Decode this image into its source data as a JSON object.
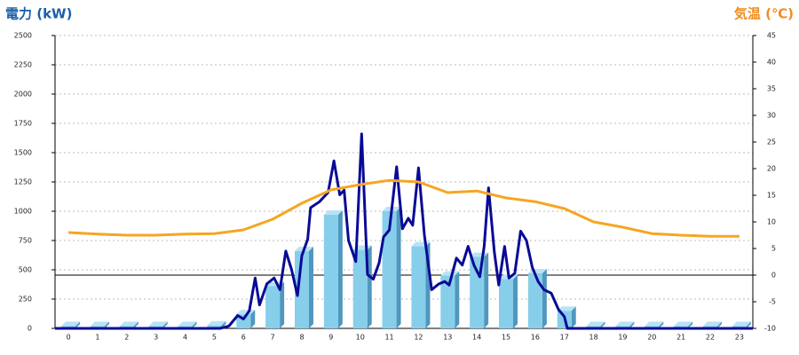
{
  "chart_data": {
    "type": "combo",
    "title_left": "電力 (kW)",
    "title_right": "気温 (℃)",
    "categories": [
      "0",
      "1",
      "2",
      "3",
      "4",
      "5",
      "6",
      "7",
      "8",
      "9",
      "10",
      "11",
      "12",
      "13",
      "14",
      "15",
      "16",
      "17",
      "18",
      "19",
      "20",
      "21",
      "22",
      "23"
    ],
    "xlim": [
      -0.46,
      23.46
    ],
    "ylim": [
      0,
      2500
    ],
    "yticks": [
      0,
      250,
      500,
      750,
      1000,
      1250,
      1500,
      1750,
      2000,
      2250,
      2500
    ],
    "y2lim": [
      -10,
      45
    ],
    "y2ticks": [
      -10,
      -5,
      0,
      5,
      10,
      15,
      20,
      25,
      30,
      35,
      40,
      45
    ],
    "grid": true,
    "y2_zero_line": true,
    "series": [
      {
        "type": "bar",
        "color": "#87ceeb",
        "values": [
          20,
          20,
          20,
          20,
          20,
          25,
          120,
          360,
          660,
          970,
          670,
          1000,
          700,
          450,
          610,
          420,
          470,
          150,
          20,
          20,
          20,
          20,
          20,
          20
        ]
      },
      {
        "type": "line",
        "color": "#0a0a96",
        "x": [
          -0.46,
          5.2,
          5.5,
          5.8,
          6.0,
          6.2,
          6.4,
          6.55,
          6.8,
          7.05,
          7.25,
          7.45,
          7.65,
          7.85,
          8.0,
          8.2,
          8.3,
          8.6,
          8.9,
          9.1,
          9.3,
          9.45,
          9.6,
          9.85,
          10.05,
          10.25,
          10.45,
          10.65,
          10.8,
          11.0,
          11.25,
          11.45,
          11.65,
          11.8,
          12.0,
          12.2,
          12.45,
          12.7,
          12.9,
          13.05,
          13.3,
          13.5,
          13.7,
          13.9,
          14.1,
          14.25,
          14.4,
          14.6,
          14.75,
          14.95,
          15.1,
          15.3,
          15.5,
          15.7,
          15.9,
          16.1,
          16.3,
          16.55,
          16.8,
          17.0,
          17.1,
          23.46
        ],
        "values": [
          0,
          0,
          20,
          110,
          80,
          150,
          430,
          200,
          380,
          430,
          330,
          660,
          500,
          280,
          620,
          760,
          1030,
          1080,
          1160,
          1430,
          1140,
          1180,
          750,
          570,
          1660,
          460,
          420,
          560,
          780,
          840,
          1380,
          850,
          940,
          880,
          1370,
          800,
          330,
          380,
          400,
          370,
          600,
          540,
          700,
          540,
          440,
          700,
          1200,
          650,
          370,
          700,
          430,
          470,
          830,
          750,
          520,
          400,
          330,
          300,
          160,
          100,
          0,
          0
        ]
      },
      {
        "type": "line",
        "axis": "y2",
        "color": "#f5a623",
        "values": [
          8,
          7.7,
          7.5,
          7.5,
          7.7,
          7.8,
          8.5,
          10.5,
          13.5,
          16,
          17,
          17.8,
          17.5,
          15.5,
          15.8,
          14.5,
          13.8,
          12.5,
          10,
          9,
          7.8,
          7.5,
          7.3,
          7.3
        ]
      }
    ]
  }
}
